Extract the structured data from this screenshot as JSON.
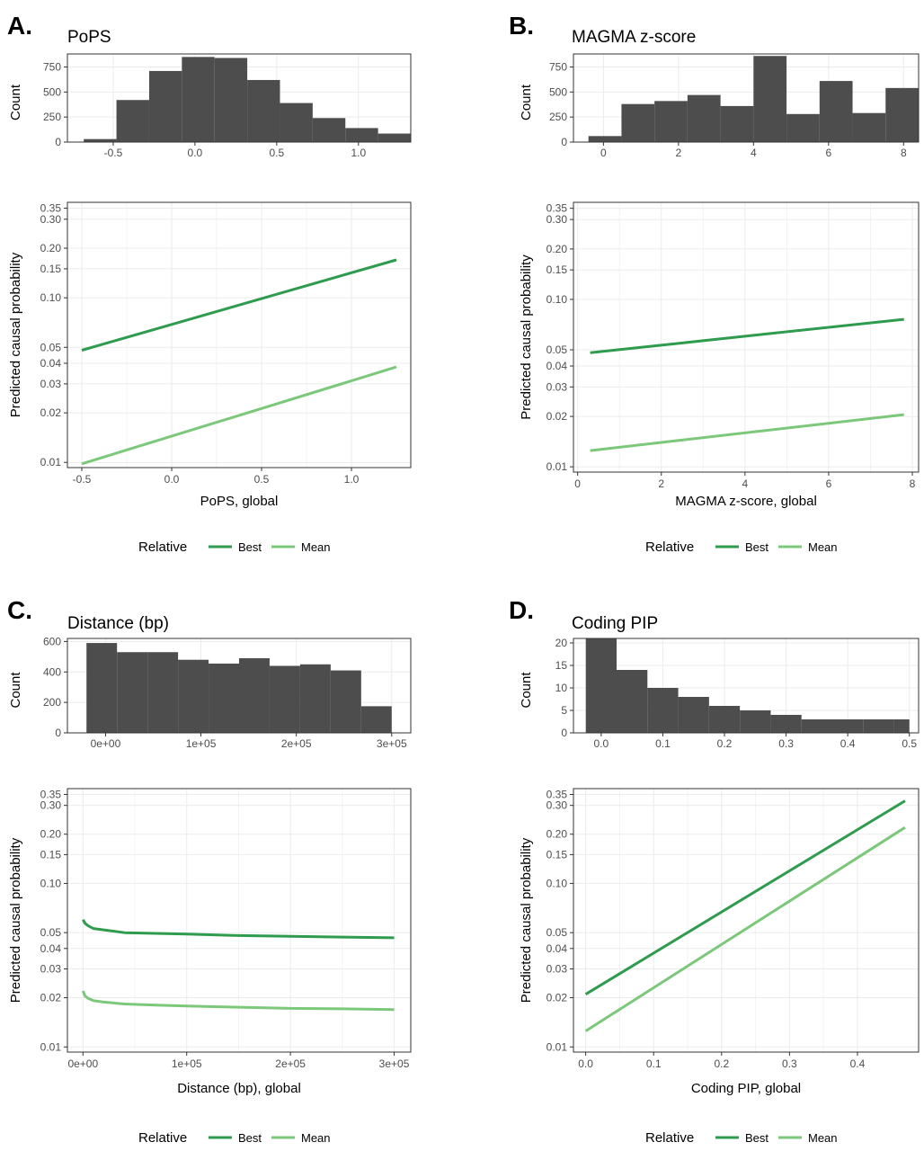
{
  "colors": {
    "best": "#2e9b4e",
    "mean": "#7bc87a",
    "hist_bar": "#4d4d4d",
    "grid": "#ebebeb",
    "panel_border": "#333333"
  },
  "legend": {
    "title": "Relative",
    "entries": [
      "Best",
      "Mean"
    ]
  },
  "chart_data": [
    {
      "panel": "A.",
      "title": "PoPS",
      "histogram": {
        "type": "bar",
        "ylabel": "Count",
        "xlim": [
          -0.78,
          1.32
        ],
        "ylim": [
          0,
          880
        ],
        "xticks": [
          -0.5,
          0.0,
          0.5,
          1.0
        ],
        "xtick_labels": [
          "-0.5",
          "0.0",
          "0.5",
          "1.0"
        ],
        "yticks": [
          0,
          250,
          500,
          750
        ],
        "yticks_labels": [
          "0",
          "250",
          "500",
          "750"
        ],
        "bins": [
          {
            "x0": -0.68,
            "x1": -0.48,
            "count": 30
          },
          {
            "x0": -0.48,
            "x1": -0.28,
            "count": 420
          },
          {
            "x0": -0.28,
            "x1": -0.08,
            "count": 710
          },
          {
            "x0": -0.08,
            "x1": 0.12,
            "count": 850
          },
          {
            "x0": 0.12,
            "x1": 0.32,
            "count": 840
          },
          {
            "x0": 0.32,
            "x1": 0.52,
            "count": 620
          },
          {
            "x0": 0.52,
            "x1": 0.72,
            "count": 390
          },
          {
            "x0": 0.72,
            "x1": 0.92,
            "count": 240
          },
          {
            "x0": 0.92,
            "x1": 1.12,
            "count": 140
          },
          {
            "x0": 1.12,
            "x1": 1.32,
            "count": 85
          }
        ]
      },
      "line": {
        "type": "line",
        "xlabel": "PoPS, global",
        "ylabel": "Predicted causal probability",
        "yscale": "log",
        "xlim": [
          -0.58,
          1.33
        ],
        "ylim": [
          0.0093,
          0.38
        ],
        "xticks": [
          -0.5,
          0.0,
          0.5,
          1.0
        ],
        "xtick_labels": [
          "-0.5",
          "0.0",
          "0.5",
          "1.0"
        ],
        "yticks": [
          0.01,
          0.02,
          0.03,
          0.04,
          0.05,
          0.1,
          0.15,
          0.2,
          0.3,
          0.35
        ],
        "ytick_labels": [
          "0.01",
          "0.02",
          "0.03",
          "0.04",
          "0.05",
          "0.10",
          "0.15",
          "0.20",
          "0.30",
          "0.35"
        ],
        "series": [
          {
            "name": "Best",
            "x": [
              -0.5,
              1.25
            ],
            "y": [
              0.048,
              0.17
            ]
          },
          {
            "name": "Mean",
            "x": [
              -0.5,
              1.25
            ],
            "y": [
              0.0098,
              0.038
            ]
          }
        ]
      }
    },
    {
      "panel": "B.",
      "title": "MAGMA z-score",
      "histogram": {
        "type": "bar",
        "ylabel": "Count",
        "xlim": [
          -0.8,
          8.4
        ],
        "ylim": [
          0,
          880
        ],
        "xticks": [
          0,
          2,
          4,
          6,
          8
        ],
        "xtick_labels": [
          "0",
          "2",
          "4",
          "6",
          "8"
        ],
        "yticks": [
          0,
          250,
          500,
          750
        ],
        "yticks_labels": [
          "0",
          "250",
          "500",
          "750"
        ],
        "bins": [
          {
            "x0": -0.4,
            "x1": 0.48,
            "count": 60
          },
          {
            "x0": 0.48,
            "x1": 1.36,
            "count": 380
          },
          {
            "x0": 1.36,
            "x1": 2.24,
            "count": 410
          },
          {
            "x0": 2.24,
            "x1": 3.12,
            "count": 470
          },
          {
            "x0": 3.12,
            "x1": 4.0,
            "count": 360
          },
          {
            "x0": 4.0,
            "x1": 4.88,
            "count": 860
          },
          {
            "x0": 4.88,
            "x1": 5.76,
            "count": 280
          },
          {
            "x0": 5.76,
            "x1": 6.64,
            "count": 610
          },
          {
            "x0": 6.64,
            "x1": 7.52,
            "count": 290
          },
          {
            "x0": 7.52,
            "x1": 8.4,
            "count": 540
          }
        ]
      },
      "line": {
        "type": "line",
        "xlabel": "MAGMA z-score, global",
        "ylabel": "Predicted causal probability",
        "yscale": "log",
        "xlim": [
          -0.1,
          8.15
        ],
        "ylim": [
          0.0093,
          0.38
        ],
        "xticks": [
          0,
          2,
          4,
          6,
          8
        ],
        "xtick_labels": [
          "0",
          "2",
          "4",
          "6",
          "8"
        ],
        "yticks": [
          0.01,
          0.02,
          0.03,
          0.04,
          0.05,
          0.1,
          0.15,
          0.2,
          0.3,
          0.35
        ],
        "ytick_labels": [
          "0.01",
          "0.02",
          "0.03",
          "0.04",
          "0.05",
          "0.10",
          "0.15",
          "0.20",
          "0.30",
          "0.35"
        ],
        "series": [
          {
            "name": "Best",
            "x": [
              0.3,
              7.8
            ],
            "y": [
              0.048,
              0.076
            ]
          },
          {
            "name": "Mean",
            "x": [
              0.3,
              7.8
            ],
            "y": [
              0.0125,
              0.0205
            ]
          }
        ]
      }
    },
    {
      "panel": "C.",
      "title": "Distance (bp)",
      "histogram": {
        "type": "bar",
        "ylabel": "Count",
        "xlim": [
          -40000,
          320000
        ],
        "ylim": [
          0,
          620
        ],
        "xticks": [
          0,
          100000,
          200000,
          300000
        ],
        "xtick_labels": [
          "0e+00",
          "1e+05",
          "2e+05",
          "3e+05"
        ],
        "yticks": [
          0,
          200,
          400,
          600
        ],
        "yticks_labels": [
          "0",
          "200",
          "400",
          "600"
        ],
        "bins": [
          {
            "x0": -20000,
            "x1": 12000,
            "count": 590
          },
          {
            "x0": 12000,
            "x1": 44000,
            "count": 530
          },
          {
            "x0": 44000,
            "x1": 76000,
            "count": 530
          },
          {
            "x0": 76000,
            "x1": 108000,
            "count": 480
          },
          {
            "x0": 108000,
            "x1": 140000,
            "count": 455
          },
          {
            "x0": 140000,
            "x1": 172000,
            "count": 490
          },
          {
            "x0": 172000,
            "x1": 204000,
            "count": 440
          },
          {
            "x0": 204000,
            "x1": 236000,
            "count": 450
          },
          {
            "x0": 236000,
            "x1": 268000,
            "count": 410
          },
          {
            "x0": 268000,
            "x1": 300000,
            "count": 175
          }
        ]
      },
      "line": {
        "type": "line",
        "xlabel": "Distance (bp), global",
        "ylabel": "Predicted causal probability",
        "yscale": "log",
        "xlim": [
          -15000,
          316000
        ],
        "ylim": [
          0.0093,
          0.38
        ],
        "xticks": [
          0,
          100000,
          200000,
          300000
        ],
        "xtick_labels": [
          "0e+00",
          "1e+05",
          "2e+05",
          "3e+05"
        ],
        "yticks": [
          0.01,
          0.02,
          0.03,
          0.04,
          0.05,
          0.1,
          0.15,
          0.2,
          0.3,
          0.35
        ],
        "ytick_labels": [
          "0.01",
          "0.02",
          "0.03",
          "0.04",
          "0.05",
          "0.10",
          "0.15",
          "0.20",
          "0.30",
          "0.35"
        ],
        "series": [
          {
            "name": "Best",
            "x": [
              0,
              2000,
              5000,
              10000,
              20000,
              40000,
              70000,
              100000,
              150000,
              200000,
              250000,
              300000
            ],
            "y": [
              0.06,
              0.057,
              0.055,
              0.053,
              0.052,
              0.05,
              0.0495,
              0.049,
              0.048,
              0.0475,
              0.047,
              0.0465
            ]
          },
          {
            "name": "Mean",
            "x": [
              0,
              2000,
              5000,
              10000,
              20000,
              40000,
              70000,
              100000,
              150000,
              200000,
              250000,
              300000
            ],
            "y": [
              0.022,
              0.0205,
              0.0198,
              0.0192,
              0.0188,
              0.0183,
              0.018,
              0.0178,
              0.0175,
              0.0172,
              0.0171,
              0.0169
            ]
          }
        ]
      }
    },
    {
      "panel": "D.",
      "title": "Coding PIP",
      "histogram": {
        "type": "bar",
        "ylabel": "Count",
        "xlim": [
          -0.045,
          0.515
        ],
        "ylim": [
          0,
          21
        ],
        "xticks": [
          0.0,
          0.1,
          0.2,
          0.3,
          0.4,
          0.5
        ],
        "xtick_labels": [
          "0.0",
          "0.1",
          "0.2",
          "0.3",
          "0.4",
          "0.5"
        ],
        "yticks": [
          0,
          5,
          10,
          15,
          20
        ],
        "yticks_labels": [
          "0",
          "5",
          "10",
          "15",
          "20"
        ],
        "bins": [
          {
            "x0": -0.025,
            "x1": 0.025,
            "count": 21
          },
          {
            "x0": 0.025,
            "x1": 0.075,
            "count": 14
          },
          {
            "x0": 0.075,
            "x1": 0.125,
            "count": 10
          },
          {
            "x0": 0.125,
            "x1": 0.175,
            "count": 8
          },
          {
            "x0": 0.175,
            "x1": 0.225,
            "count": 6
          },
          {
            "x0": 0.225,
            "x1": 0.275,
            "count": 5
          },
          {
            "x0": 0.275,
            "x1": 0.325,
            "count": 4
          },
          {
            "x0": 0.325,
            "x1": 0.375,
            "count": 3
          },
          {
            "x0": 0.375,
            "x1": 0.425,
            "count": 3
          },
          {
            "x0": 0.425,
            "x1": 0.475,
            "count": 3
          },
          {
            "x0": 0.475,
            "x1": 0.5,
            "count": 3
          }
        ]
      },
      "line": {
        "type": "line",
        "xlabel": "Coding PIP, global",
        "ylabel": "Predicted causal probability",
        "yscale": "log",
        "xlim": [
          -0.018,
          0.49
        ],
        "ylim": [
          0.0093,
          0.38
        ],
        "xticks": [
          0.0,
          0.1,
          0.2,
          0.3,
          0.4
        ],
        "xtick_labels": [
          "0.0",
          "0.1",
          "0.2",
          "0.3",
          "0.4"
        ],
        "yticks": [
          0.01,
          0.02,
          0.03,
          0.04,
          0.05,
          0.1,
          0.15,
          0.2,
          0.3,
          0.35
        ],
        "ytick_labels": [
          "0.01",
          "0.02",
          "0.03",
          "0.04",
          "0.05",
          "0.10",
          "0.15",
          "0.20",
          "0.30",
          "0.35"
        ],
        "series": [
          {
            "name": "Best",
            "x": [
              0.0,
              0.47
            ],
            "y": [
              0.021,
              0.32
            ]
          },
          {
            "name": "Mean",
            "x": [
              0.0,
              0.47
            ],
            "y": [
              0.0125,
              0.22
            ]
          }
        ]
      }
    }
  ]
}
